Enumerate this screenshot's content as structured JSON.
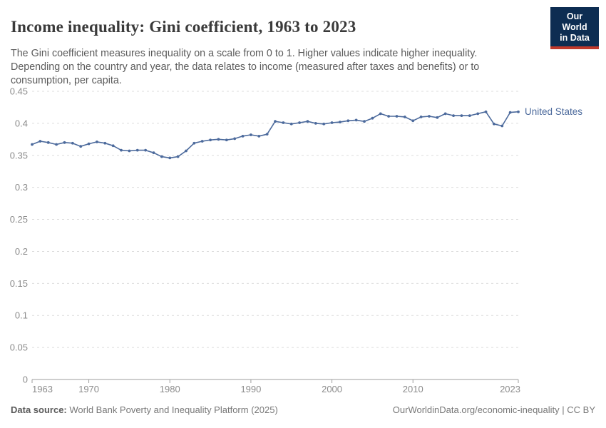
{
  "header": {
    "title": "Income inequality: Gini coefficient, 1963 to 2023",
    "subtitle": "The Gini coefficient measures inequality on a scale from 0 to 1. Higher values indicate higher inequality. Depending on the country and year, the data relates to income (measured after taxes and benefits) or to consumption, per capita.",
    "logo": {
      "line1": "Our World",
      "line2": "in Data",
      "bg_color": "#0d2d52",
      "accent_color": "#c0392b"
    }
  },
  "chart_data": {
    "type": "line",
    "title": "Income inequality: Gini coefficient, 1963 to 2023",
    "xlabel": "",
    "ylabel": "",
    "xlim": [
      1963,
      2023
    ],
    "ylim": [
      0,
      0.45
    ],
    "x_ticks": [
      1963,
      1970,
      1980,
      1990,
      2000,
      2010,
      2023
    ],
    "y_ticks": [
      0,
      0.05,
      0.1,
      0.15,
      0.2,
      0.25,
      0.3,
      0.35,
      0.4,
      0.45
    ],
    "grid": "horizontal-dashed",
    "legend_position": "end-of-line-label",
    "colors": {
      "gridline": "#dcdcdc",
      "axis": "#9e9e9e",
      "tick_label": "#8c8c8c"
    },
    "x": [
      1963,
      1964,
      1965,
      1966,
      1967,
      1968,
      1969,
      1970,
      1971,
      1972,
      1973,
      1974,
      1975,
      1976,
      1977,
      1978,
      1979,
      1980,
      1981,
      1982,
      1983,
      1984,
      1985,
      1986,
      1987,
      1988,
      1989,
      1990,
      1991,
      1992,
      1993,
      1994,
      1995,
      1996,
      1997,
      1998,
      1999,
      2000,
      2001,
      2002,
      2003,
      2004,
      2005,
      2006,
      2007,
      2008,
      2009,
      2010,
      2011,
      2012,
      2013,
      2014,
      2015,
      2016,
      2017,
      2018,
      2019,
      2020,
      2021,
      2022,
      2023
    ],
    "series": [
      {
        "name": "United States",
        "color": "#4C6A9C",
        "values": [
          0.367,
          0.372,
          0.37,
          0.367,
          0.37,
          0.369,
          0.364,
          0.368,
          0.371,
          0.369,
          0.365,
          0.358,
          0.357,
          0.358,
          0.358,
          0.354,
          0.348,
          0.346,
          0.348,
          0.357,
          0.369,
          0.372,
          0.374,
          0.375,
          0.374,
          0.376,
          0.38,
          0.382,
          0.38,
          0.383,
          0.403,
          0.401,
          0.399,
          0.401,
          0.403,
          0.4,
          0.399,
          0.401,
          0.402,
          0.404,
          0.405,
          0.403,
          0.408,
          0.415,
          0.411,
          0.411,
          0.41,
          0.404,
          0.41,
          0.411,
          0.409,
          0.415,
          0.412,
          0.412,
          0.412,
          0.415,
          0.418,
          0.399,
          0.396,
          0.417,
          0.418
        ]
      }
    ]
  },
  "footer": {
    "source_label": "Data source:",
    "source_text": " World Bank Poverty and Inequality Platform (2025)",
    "link_text": "OurWorldinData.org/economic-inequality",
    "separator": " | ",
    "license_text": "CC BY"
  }
}
